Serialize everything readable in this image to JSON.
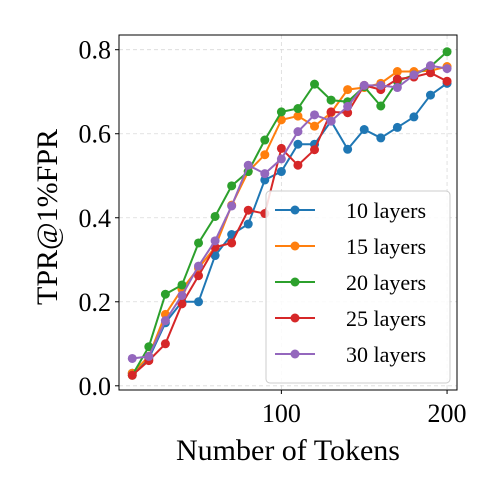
{
  "chart_data": {
    "type": "line",
    "title": "",
    "xlabel": "Number of Tokens",
    "ylabel": "TPR@1%FPR",
    "xlim": [
      2,
      206
    ],
    "ylim": [
      -0.01,
      0.835
    ],
    "x_ticks": [
      {
        "value": 100,
        "label": "100"
      },
      {
        "value": 200,
        "label": "200"
      }
    ],
    "y_ticks": [
      {
        "value": 0.0,
        "label": "0.0"
      },
      {
        "value": 0.2,
        "label": "0.2"
      },
      {
        "value": 0.4,
        "label": "0.4"
      },
      {
        "value": 0.6,
        "label": "0.6"
      },
      {
        "value": 0.8,
        "label": "0.8"
      }
    ],
    "grid": true,
    "legend_position": "lower-right",
    "x": [
      10,
      20,
      30,
      40,
      50,
      60,
      70,
      80,
      90,
      100,
      110,
      120,
      130,
      140,
      150,
      160,
      170,
      180,
      190,
      200
    ],
    "series": [
      {
        "name": "10 layers",
        "color": "#1f77b4",
        "values": [
          0.03,
          0.065,
          0.15,
          0.2,
          0.2,
          0.31,
          0.36,
          0.385,
          0.49,
          0.51,
          0.575,
          0.575,
          0.63,
          0.563,
          0.61,
          0.59,
          0.615,
          0.64,
          0.692,
          0.72
        ]
      },
      {
        "name": "15 layers",
        "color": "#ff7f0e",
        "values": [
          0.03,
          0.07,
          0.17,
          0.23,
          0.28,
          0.33,
          0.43,
          0.51,
          0.55,
          0.633,
          0.642,
          0.618,
          0.65,
          0.705,
          0.71,
          0.72,
          0.748,
          0.748,
          0.75,
          0.76
        ]
      },
      {
        "name": "20 layers",
        "color": "#2ca02c",
        "values": [
          0.025,
          0.093,
          0.218,
          0.24,
          0.34,
          0.403,
          0.476,
          0.51,
          0.585,
          0.652,
          0.66,
          0.718,
          0.68,
          0.676,
          0.712,
          0.666,
          0.725,
          0.74,
          0.76,
          0.795
        ]
      },
      {
        "name": "25 layers",
        "color": "#d62728",
        "values": [
          0.025,
          0.06,
          0.1,
          0.195,
          0.262,
          0.33,
          0.34,
          0.418,
          0.41,
          0.565,
          0.525,
          0.562,
          0.652,
          0.65,
          0.715,
          0.705,
          0.73,
          0.735,
          0.745,
          0.725
        ]
      },
      {
        "name": "30 layers",
        "color": "#9467bd",
        "values": [
          0.065,
          0.07,
          0.155,
          0.215,
          0.285,
          0.345,
          0.428,
          0.525,
          0.505,
          0.54,
          0.605,
          0.645,
          0.63,
          0.665,
          0.715,
          0.715,
          0.71,
          0.74,
          0.762,
          0.755
        ]
      }
    ]
  }
}
